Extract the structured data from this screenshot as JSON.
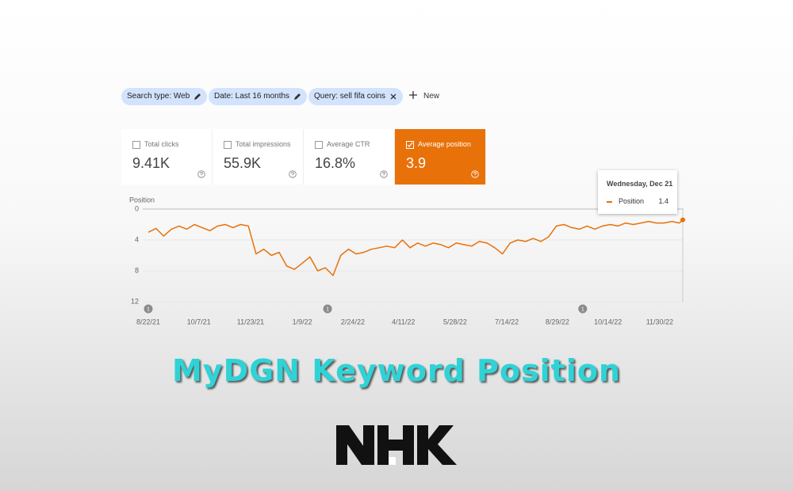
{
  "filters": [
    "Search type: Web",
    "Date: Last 16 months",
    "Query: sell fifa coins"
  ],
  "new_button": "New",
  "metrics": [
    {
      "label": "Total clicks",
      "value": "9.41K",
      "checked": false
    },
    {
      "label": "Total impressions",
      "value": "55.9K",
      "checked": false
    },
    {
      "label": "Average CTR",
      "value": "16.8%",
      "checked": false
    },
    {
      "label": "Average position",
      "value": "3.9",
      "checked": true
    }
  ],
  "chart_data": {
    "type": "line",
    "y_label": "Position",
    "y_inverted": true,
    "x": [
      "8/22/21",
      "8/29/21",
      "9/5/21",
      "9/12/21",
      "9/19/21",
      "9/26/21",
      "10/3/21",
      "10/10/21",
      "10/17/21",
      "10/24/21",
      "10/31/21",
      "11/7/21",
      "11/14/21",
      "11/21/21",
      "11/28/21",
      "12/5/21",
      "12/12/21",
      "12/19/21",
      "12/26/21",
      "1/2/22",
      "1/9/22",
      "1/16/22",
      "1/23/22",
      "1/30/22",
      "2/6/22",
      "2/13/22",
      "2/20/22",
      "2/27/22",
      "3/6/22",
      "3/13/22",
      "3/20/22",
      "3/27/22",
      "4/3/22",
      "4/10/22",
      "4/17/22",
      "4/24/22",
      "5/1/22",
      "5/8/22",
      "5/15/22",
      "5/22/22",
      "5/29/22",
      "6/5/22",
      "6/12/22",
      "6/19/22",
      "6/26/22",
      "7/3/22",
      "7/10/22",
      "7/17/22",
      "7/24/22",
      "7/31/22",
      "8/7/22",
      "8/14/22",
      "8/21/22",
      "8/28/22",
      "9/4/22",
      "9/11/22",
      "9/18/22",
      "9/25/22",
      "10/2/22",
      "10/9/22",
      "10/16/22",
      "10/23/22",
      "10/30/22",
      "11/6/22",
      "11/13/22",
      "11/20/22",
      "11/27/22",
      "12/4/22",
      "12/11/22",
      "12/18/22",
      "12/21/22"
    ],
    "series": [
      {
        "name": "Position",
        "color": "#e8710a",
        "values": [
          3.0,
          2.5,
          3.5,
          2.6,
          2.2,
          2.6,
          2.0,
          2.4,
          2.8,
          2.2,
          2.0,
          2.4,
          2.0,
          2.2,
          5.8,
          5.2,
          6.0,
          5.6,
          7.4,
          7.8,
          7.0,
          6.2,
          8.0,
          7.6,
          8.6,
          6.0,
          5.2,
          5.8,
          5.6,
          5.2,
          5.0,
          4.8,
          5.0,
          4.0,
          5.0,
          4.4,
          4.8,
          4.4,
          4.6,
          5.0,
          4.4,
          4.6,
          4.8,
          4.2,
          4.4,
          5.0,
          5.8,
          4.4,
          4.0,
          4.2,
          3.8,
          4.2,
          3.6,
          2.2,
          2.0,
          2.4,
          2.6,
          2.2,
          2.6,
          2.2,
          2.0,
          2.2,
          1.8,
          2.0,
          1.8,
          1.6,
          1.8,
          1.8,
          1.6,
          1.8,
          1.4
        ]
      }
    ],
    "xlim": [
      "8/22/21",
      "12/21/22"
    ],
    "xticks": [
      "8/22/21",
      "10/7/21",
      "11/23/21",
      "1/9/22",
      "2/24/22",
      "4/11/22",
      "5/28/22",
      "7/14/22",
      "8/29/22",
      "10/14/22",
      "11/30/22"
    ],
    "ylim": [
      0,
      12
    ],
    "yticks": [
      0,
      4,
      8,
      12
    ],
    "grid": true,
    "annotations": [
      {
        "x": "8/22/21",
        "label": "1"
      },
      {
        "x": "2/1/22",
        "label": "1"
      },
      {
        "x": "9/21/22",
        "label": "1"
      }
    ]
  },
  "tooltip": {
    "date": "Wednesday, Dec 21"
  },
  "title": "MyDGN Keyword Position"
}
